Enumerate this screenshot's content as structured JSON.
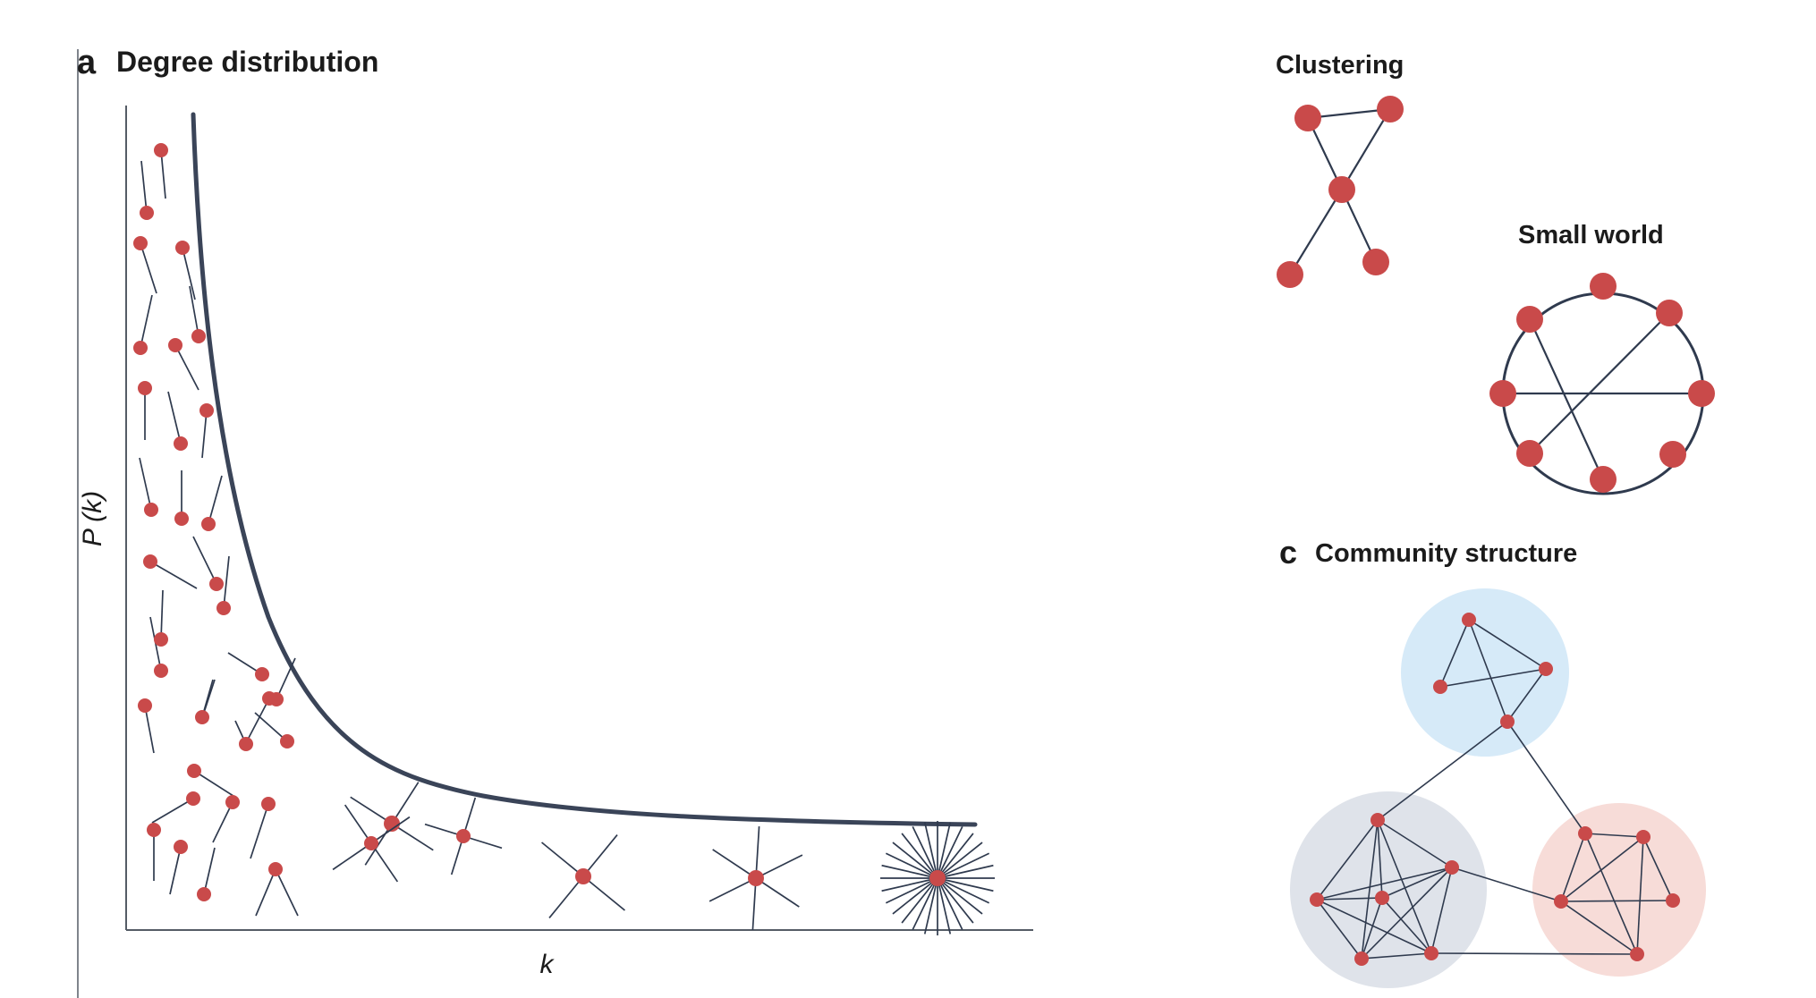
{
  "colors": {
    "node": "#c94a4a",
    "edge": "#2f3a4e",
    "curve": "#3a4458",
    "community_blue": "#d6eaf8",
    "community_gray": "#dfe3ea",
    "community_pink": "#f7dcd8"
  },
  "panel_a": {
    "letter": "a",
    "title": "Degree distribution",
    "y_label": "P (k)",
    "x_label": "k"
  },
  "panel_b": {
    "clustering_title": "Clustering",
    "small_world_title": "Small world"
  },
  "panel_c": {
    "letter": "c",
    "title": "Community structure"
  }
}
